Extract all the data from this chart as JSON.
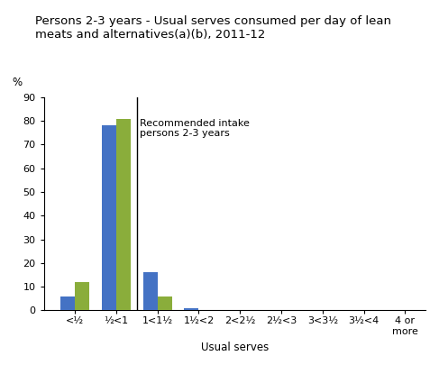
{
  "title_line1": "Persons 2-3 years - Usual serves consumed per day of lean",
  "title_line2": "meats and alternatives(a)(b), 2011-12",
  "categories": [
    "<½",
    "½<1",
    "1<1½",
    "1½<2",
    "2<2½",
    "2½<3",
    "3<3½",
    "3½<4",
    "4 or\nmore"
  ],
  "males": [
    6,
    78,
    16,
    1,
    0,
    0,
    0,
    0,
    0
  ],
  "females": [
    12,
    81,
    6,
    0,
    0,
    0,
    0,
    0,
    0
  ],
  "males_color": "#4472C4",
  "females_color": "#8AAD3B",
  "ylabel": "%",
  "xlabel": "Usual serves",
  "ylim": [
    0,
    90
  ],
  "yticks": [
    0,
    10,
    20,
    30,
    40,
    50,
    60,
    70,
    80,
    90
  ],
  "recommended_label": "Recommended intake\npersons 2-3 years",
  "bar_width": 0.35,
  "background_color": "#ffffff",
  "title_fontsize": 9.5,
  "axis_fontsize": 8.5,
  "tick_fontsize": 8,
  "legend_fontsize": 8.5
}
